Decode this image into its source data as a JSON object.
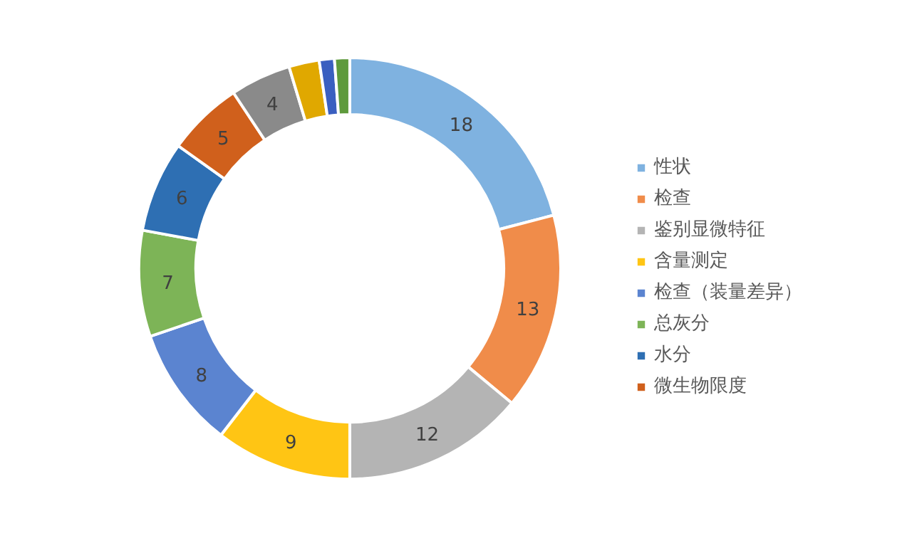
{
  "chart_data": {
    "type": "donut",
    "categories": [
      "性状",
      "检查",
      "鉴别显微特征",
      "含量测定",
      "检查（装量差异）",
      "总灰分",
      "水分",
      "微生物限度",
      null,
      null,
      null,
      null
    ],
    "values": [
      18,
      13,
      12,
      9,
      8,
      7,
      6,
      5,
      4,
      2,
      1,
      1
    ],
    "value_labels": [
      "18",
      "13",
      "12",
      "9",
      "8",
      "7",
      "6",
      "5",
      "4",
      null,
      null,
      null
    ],
    "colors": [
      "#7fb2e0",
      "#f08c4a",
      "#b4b4b4",
      "#ffc514",
      "#5b84d0",
      "#7db457",
      "#2e6fb3",
      "#d0601c",
      "#8a8a8a",
      "#e0a800",
      "#3a5fc0",
      "#5e9a3c"
    ],
    "legend": "right"
  }
}
